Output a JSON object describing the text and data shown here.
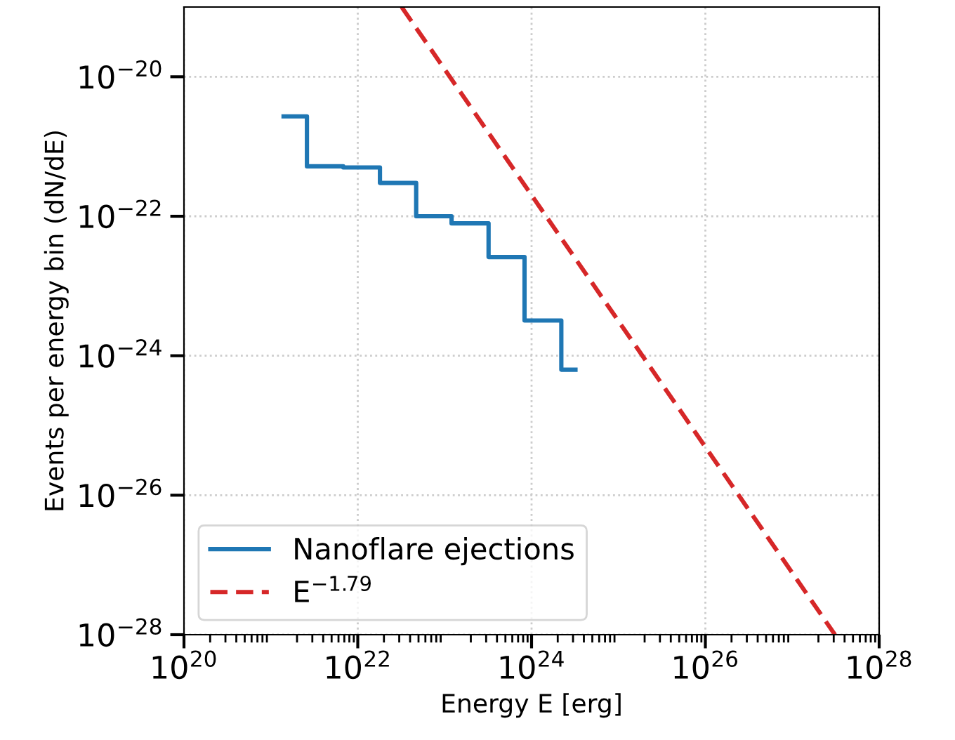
{
  "chart_data": {
    "type": "line",
    "xlabel": "Energy E [erg]",
    "ylabel": "Events per energy bin (dN/dE)",
    "log": "xy",
    "xlim": [
      1e+20,
      1e+28
    ],
    "ylim": [
      1e-28,
      1e-19
    ],
    "xticks": [
      {
        "value": 1e+20,
        "label": "10$^{20}$"
      },
      {
        "value": 1e+22,
        "label": "10$^{22}$"
      },
      {
        "value": 1e+24,
        "label": "10$^{24}$"
      },
      {
        "value": 1e+26,
        "label": "10$^{26}$"
      },
      {
        "value": 1e+28,
        "label": "10$^{28}$"
      }
    ],
    "yticks": [
      {
        "value": 1e-28,
        "label": "10$^{−28}$"
      },
      {
        "value": 1e-26,
        "label": "10$^{−26}$"
      },
      {
        "value": 1e-24,
        "label": "10$^{−24}$"
      },
      {
        "value": 1e-22,
        "label": "10$^{−22}$"
      },
      {
        "value": 1e-20,
        "label": "10$^{−20}$"
      }
    ],
    "grid": true,
    "legend": "bottom left",
    "series": [
      {
        "name": "Nanoflare ejections",
        "type": "step",
        "color": "#1f77b4",
        "line_style": "solid",
        "x": [
          1.4e+21,
          2.6e+21,
          6.8e+21,
          1.8e+22,
          4.7e+22,
          1.2e+23,
          3.2e+23,
          8.3e+23,
          2.2e+24,
          3.2e+24
        ],
        "values": [
          2.7e-21,
          5.2e-22,
          5e-22,
          3e-22,
          1e-22,
          7.9e-23,
          2.6e-23,
          3.2e-24,
          6.3e-25,
          6.3e-25
        ]
      },
      {
        "name": "E$^{−1.79}$",
        "color": "#d62728",
        "line_style": "dashed",
        "x": [
          3.2e+22,
          3.1e+27
        ],
        "values": [
          1e-19,
          1e-28
        ]
      }
    ]
  }
}
